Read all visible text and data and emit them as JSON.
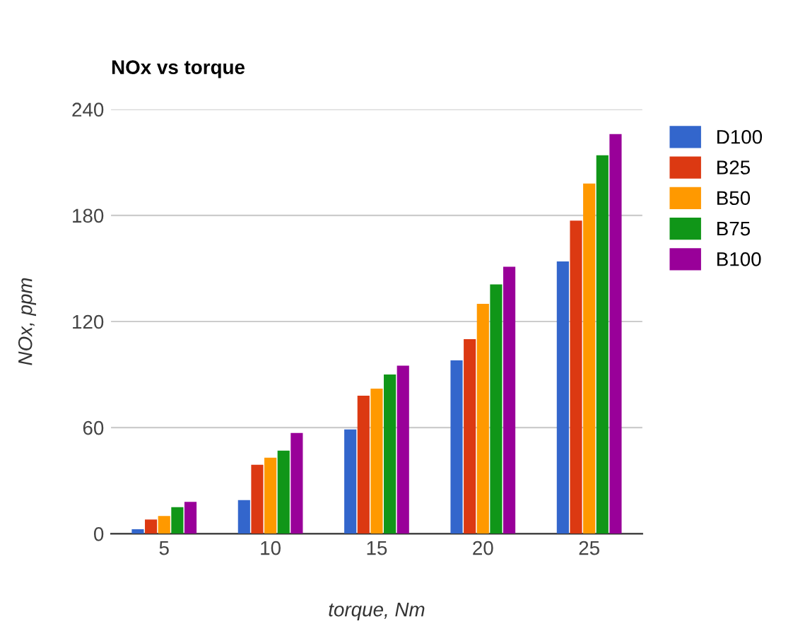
{
  "chart_data": {
    "type": "bar",
    "title": "NOx vs torque",
    "xlabel": "torque, Nm",
    "ylabel": "NOx, ppm",
    "categories": [
      "5",
      "10",
      "15",
      "20",
      "25"
    ],
    "series": [
      {
        "name": "D100",
        "color": "#3366cc",
        "values": [
          2.5,
          19,
          59,
          98,
          154
        ]
      },
      {
        "name": "B25",
        "color": "#dc3912",
        "values": [
          8,
          39,
          78,
          110,
          177
        ]
      },
      {
        "name": "B50",
        "color": "#ff9900",
        "values": [
          10,
          43,
          82,
          130,
          198
        ]
      },
      {
        "name": "B75",
        "color": "#109618",
        "values": [
          15,
          47,
          90,
          141,
          214
        ]
      },
      {
        "name": "B100",
        "color": "#990099",
        "values": [
          18,
          57,
          95,
          151,
          226
        ]
      }
    ],
    "ylim": [
      0,
      240
    ],
    "yticks": [
      0,
      60,
      120,
      180,
      240
    ],
    "grid": "y",
    "legend": "top right"
  }
}
